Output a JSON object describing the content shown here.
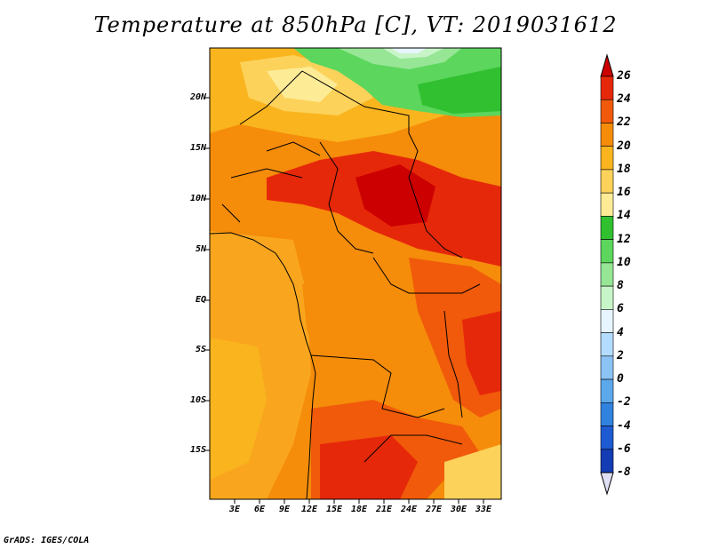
{
  "title": "Temperature at 850hPa [C], VT: 2019031612",
  "credit": "GrADS: IGES/COLA",
  "map": {
    "lat_labels": [
      "20N",
      "15N",
      "10N",
      "5N",
      "EQ",
      "5S",
      "10S",
      "15S"
    ],
    "lon_labels": [
      "3E",
      "6E",
      "9E",
      "12E",
      "15E",
      "18E",
      "21E",
      "24E",
      "27E",
      "30E",
      "33E"
    ]
  },
  "colorbar": {
    "labels": [
      "26",
      "24",
      "22",
      "20",
      "18",
      "16",
      "14",
      "12",
      "10",
      "8",
      "6",
      "4",
      "2",
      "0",
      "-2",
      "-4",
      "-6",
      "-8"
    ],
    "colors": [
      "#cc0000",
      "#e6280a",
      "#f05a0a",
      "#f58c0a",
      "#f9b41e",
      "#fcd25a",
      "#fdeb96",
      "#30c030",
      "#5cd65c",
      "#96e696",
      "#c8f5c8",
      "#e6f5ff",
      "#b4dcff",
      "#8cc3f5",
      "#5ca8eb",
      "#3282e0",
      "#1e5ad2",
      "#143cb4",
      "#0a1e96",
      "#050a64",
      "#e0e0f5"
    ]
  }
}
